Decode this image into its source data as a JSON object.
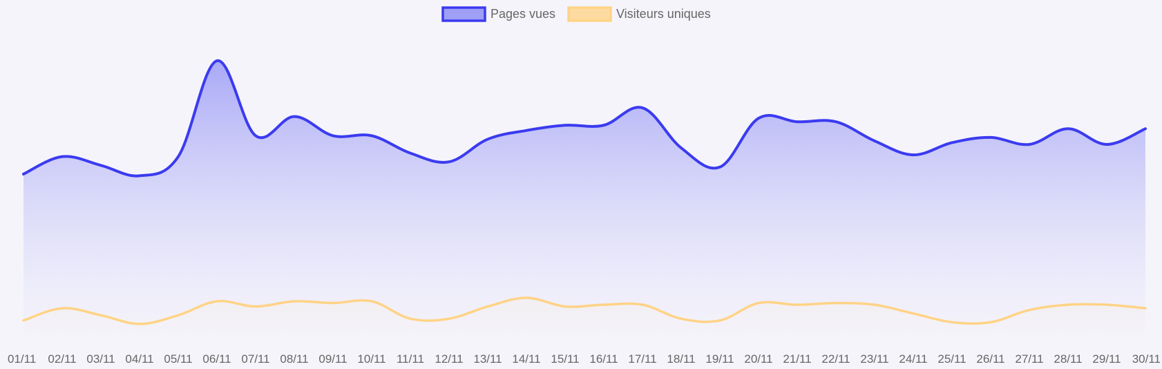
{
  "chart_data": {
    "type": "area",
    "title": "",
    "xlabel": "",
    "ylabel": "",
    "ylim": [
      0,
      1800
    ],
    "grid": false,
    "legend_position": "top",
    "categories": [
      "01/11",
      "02/11",
      "03/11",
      "04/11",
      "05/11",
      "06/11",
      "07/11",
      "08/11",
      "09/11",
      "10/11",
      "11/11",
      "12/11",
      "13/11",
      "14/11",
      "15/11",
      "16/11",
      "17/11",
      "18/11",
      "19/11",
      "20/11",
      "21/11",
      "22/11",
      "23/11",
      "24/11",
      "25/11",
      "26/11",
      "27/11",
      "28/11",
      "29/11",
      "30/11"
    ],
    "series": [
      {
        "name": "Pages vues",
        "line_color": "#3b3bf0",
        "fill_color": "#9f9ff5",
        "values": [
          960,
          1060,
          1010,
          950,
          1060,
          1610,
          1180,
          1290,
          1180,
          1180,
          1080,
          1030,
          1160,
          1210,
          1240,
          1240,
          1340,
          1110,
          1000,
          1280,
          1260,
          1260,
          1150,
          1070,
          1140,
          1170,
          1130,
          1220,
          1130,
          1220
        ]
      },
      {
        "name": "Visiteurs uniques",
        "line_color": "#ffd386",
        "fill_color": "#fddba0",
        "values": [
          120,
          190,
          150,
          100,
          150,
          230,
          200,
          230,
          220,
          230,
          130,
          130,
          200,
          250,
          200,
          210,
          210,
          130,
          120,
          220,
          210,
          220,
          210,
          160,
          110,
          110,
          180,
          210,
          210,
          190
        ]
      }
    ]
  }
}
